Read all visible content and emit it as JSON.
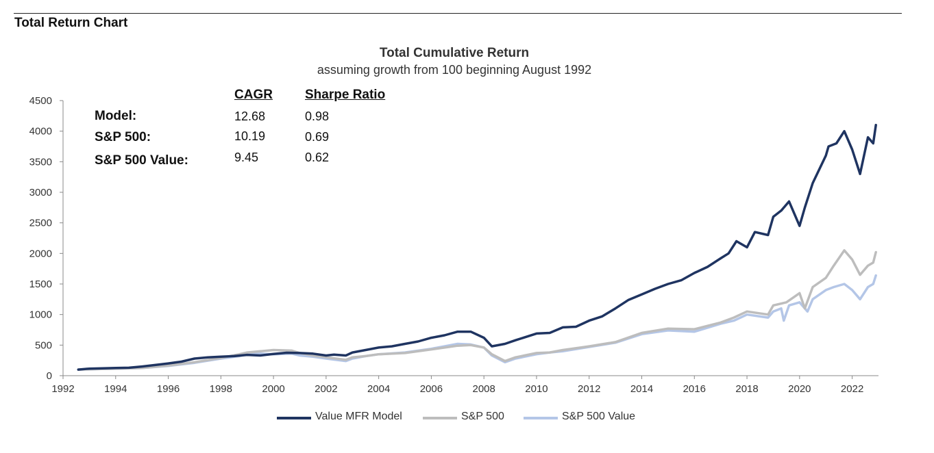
{
  "header": {
    "section_title": "Total Return Chart"
  },
  "stats": {
    "headers": {
      "cagr": "CAGR",
      "sharpe": "Sharpe Ratio"
    },
    "rows": [
      {
        "label": "Model:",
        "cagr": "12.68",
        "sharpe": "0.98"
      },
      {
        "label": "S&P 500:",
        "cagr": "10.19",
        "sharpe": "0.69"
      },
      {
        "label": "S&P 500 Value:",
        "cagr": "9.45",
        "sharpe": "0.62"
      }
    ]
  },
  "colors": {
    "model": "#1f3461",
    "sp500": "#bdbdbd",
    "sp500_value": "#b4c6e7"
  },
  "chart_data": {
    "type": "line",
    "title": "Total Cumulative Return",
    "subtitle": "assuming growth from 100 beginning August 1992",
    "xlabel": "",
    "ylabel": "",
    "xlim": [
      1992,
      2023
    ],
    "ylim": [
      0,
      4500
    ],
    "x_ticks": [
      "1992",
      "1994",
      "1996",
      "1998",
      "2000",
      "2002",
      "2004",
      "2006",
      "2008",
      "2010",
      "2012",
      "2014",
      "2016",
      "2018",
      "2020",
      "2022"
    ],
    "y_ticks": [
      "0",
      "500",
      "1000",
      "1500",
      "2000",
      "2500",
      "3000",
      "3500",
      "4000",
      "4500"
    ],
    "legend_position": "bottom",
    "series": [
      {
        "name": "Value MFR Model",
        "x": [
          1992.58,
          1993,
          1993.5,
          1994,
          1994.5,
          1995,
          1995.5,
          1996,
          1996.5,
          1997,
          1997.5,
          1998,
          1998.5,
          1999,
          1999.5,
          2000,
          2000.5,
          2001,
          2001.5,
          2002,
          2002.3,
          2002.75,
          2003,
          2003.5,
          2004,
          2004.5,
          2005,
          2005.5,
          2006,
          2006.5,
          2007,
          2007.5,
          2008,
          2008.3,
          2008.8,
          2009.2,
          2009.5,
          2010,
          2010.5,
          2011,
          2011.5,
          2012,
          2012.5,
          2013,
          2013.5,
          2014,
          2014.5,
          2015,
          2015.5,
          2016,
          2016.5,
          2017,
          2017.3,
          2017.6,
          2018,
          2018.3,
          2018.8,
          2019,
          2019.3,
          2019.6,
          2020,
          2020.2,
          2020.5,
          2021,
          2021.1,
          2021.4,
          2021.7,
          2022,
          2022.3,
          2022.6,
          2022.8,
          2022.9
        ],
        "y": [
          100,
          115,
          120,
          125,
          130,
          150,
          175,
          200,
          230,
          280,
          300,
          310,
          320,
          340,
          330,
          355,
          375,
          370,
          360,
          330,
          345,
          330,
          380,
          420,
          460,
          480,
          520,
          560,
          620,
          660,
          720,
          720,
          620,
          480,
          520,
          580,
          620,
          690,
          700,
          790,
          800,
          900,
          970,
          1100,
          1240,
          1330,
          1420,
          1500,
          1560,
          1680,
          1780,
          1920,
          2000,
          2200,
          2100,
          2350,
          2300,
          2600,
          2700,
          2850,
          2450,
          2750,
          3150,
          3600,
          3750,
          3800,
          4000,
          3700,
          3300,
          3900,
          3800,
          4100
        ]
      },
      {
        "name": "S&P 500",
        "x": [
          1992.58,
          1993,
          1994,
          1995,
          1996,
          1997,
          1998,
          1998.7,
          1999,
          1999.5,
          2000,
          2000.7,
          2001,
          2001.5,
          2002,
          2002.75,
          2003,
          2003.5,
          2004,
          2005,
          2006,
          2007,
          2007.5,
          2008,
          2008.3,
          2008.8,
          2009.2,
          2010,
          2010.5,
          2011,
          2012,
          2013,
          2014,
          2015,
          2016,
          2017,
          2017.5,
          2018,
          2018.8,
          2019,
          2019.5,
          2020,
          2020.2,
          2020.5,
          2021,
          2021.3,
          2021.7,
          2022,
          2022.3,
          2022.6,
          2022.8,
          2022.9
        ],
        "y": [
          100,
          105,
          115,
          125,
          165,
          220,
          290,
          350,
          380,
          400,
          420,
          410,
          370,
          330,
          300,
          260,
          300,
          320,
          350,
          370,
          430,
          490,
          500,
          460,
          350,
          240,
          300,
          370,
          380,
          420,
          480,
          550,
          700,
          770,
          760,
          870,
          950,
          1050,
          1000,
          1150,
          1200,
          1350,
          1100,
          1450,
          1600,
          1800,
          2050,
          1900,
          1650,
          1800,
          1850,
          2020
        ]
      },
      {
        "name": "S&P 500 Value",
        "x": [
          1992.58,
          1993,
          1994,
          1995,
          1996,
          1997,
          1998,
          1998.7,
          1999,
          1999.5,
          2000,
          2000.7,
          2001,
          2001.5,
          2002,
          2002.75,
          2003,
          2003.5,
          2004,
          2005,
          2006,
          2007,
          2007.5,
          2008,
          2008.3,
          2008.8,
          2009.2,
          2010,
          2010.5,
          2011,
          2012,
          2013,
          2014,
          2015,
          2016,
          2017,
          2017.5,
          2018,
          2018.8,
          2019,
          2019.3,
          2019.4,
          2019.6,
          2020,
          2020.3,
          2020.5,
          2021,
          2021.3,
          2021.7,
          2022,
          2022.3,
          2022.6,
          2022.8,
          2022.9
        ],
        "y": [
          100,
          105,
          115,
          125,
          160,
          210,
          280,
          320,
          350,
          360,
          350,
          360,
          330,
          310,
          280,
          240,
          280,
          320,
          350,
          380,
          440,
          520,
          510,
          460,
          330,
          220,
          280,
          350,
          380,
          400,
          470,
          540,
          680,
          740,
          720,
          850,
          900,
          1000,
          950,
          1050,
          1100,
          900,
          1150,
          1200,
          1050,
          1250,
          1400,
          1450,
          1500,
          1400,
          1250,
          1450,
          1500,
          1640
        ]
      }
    ]
  }
}
